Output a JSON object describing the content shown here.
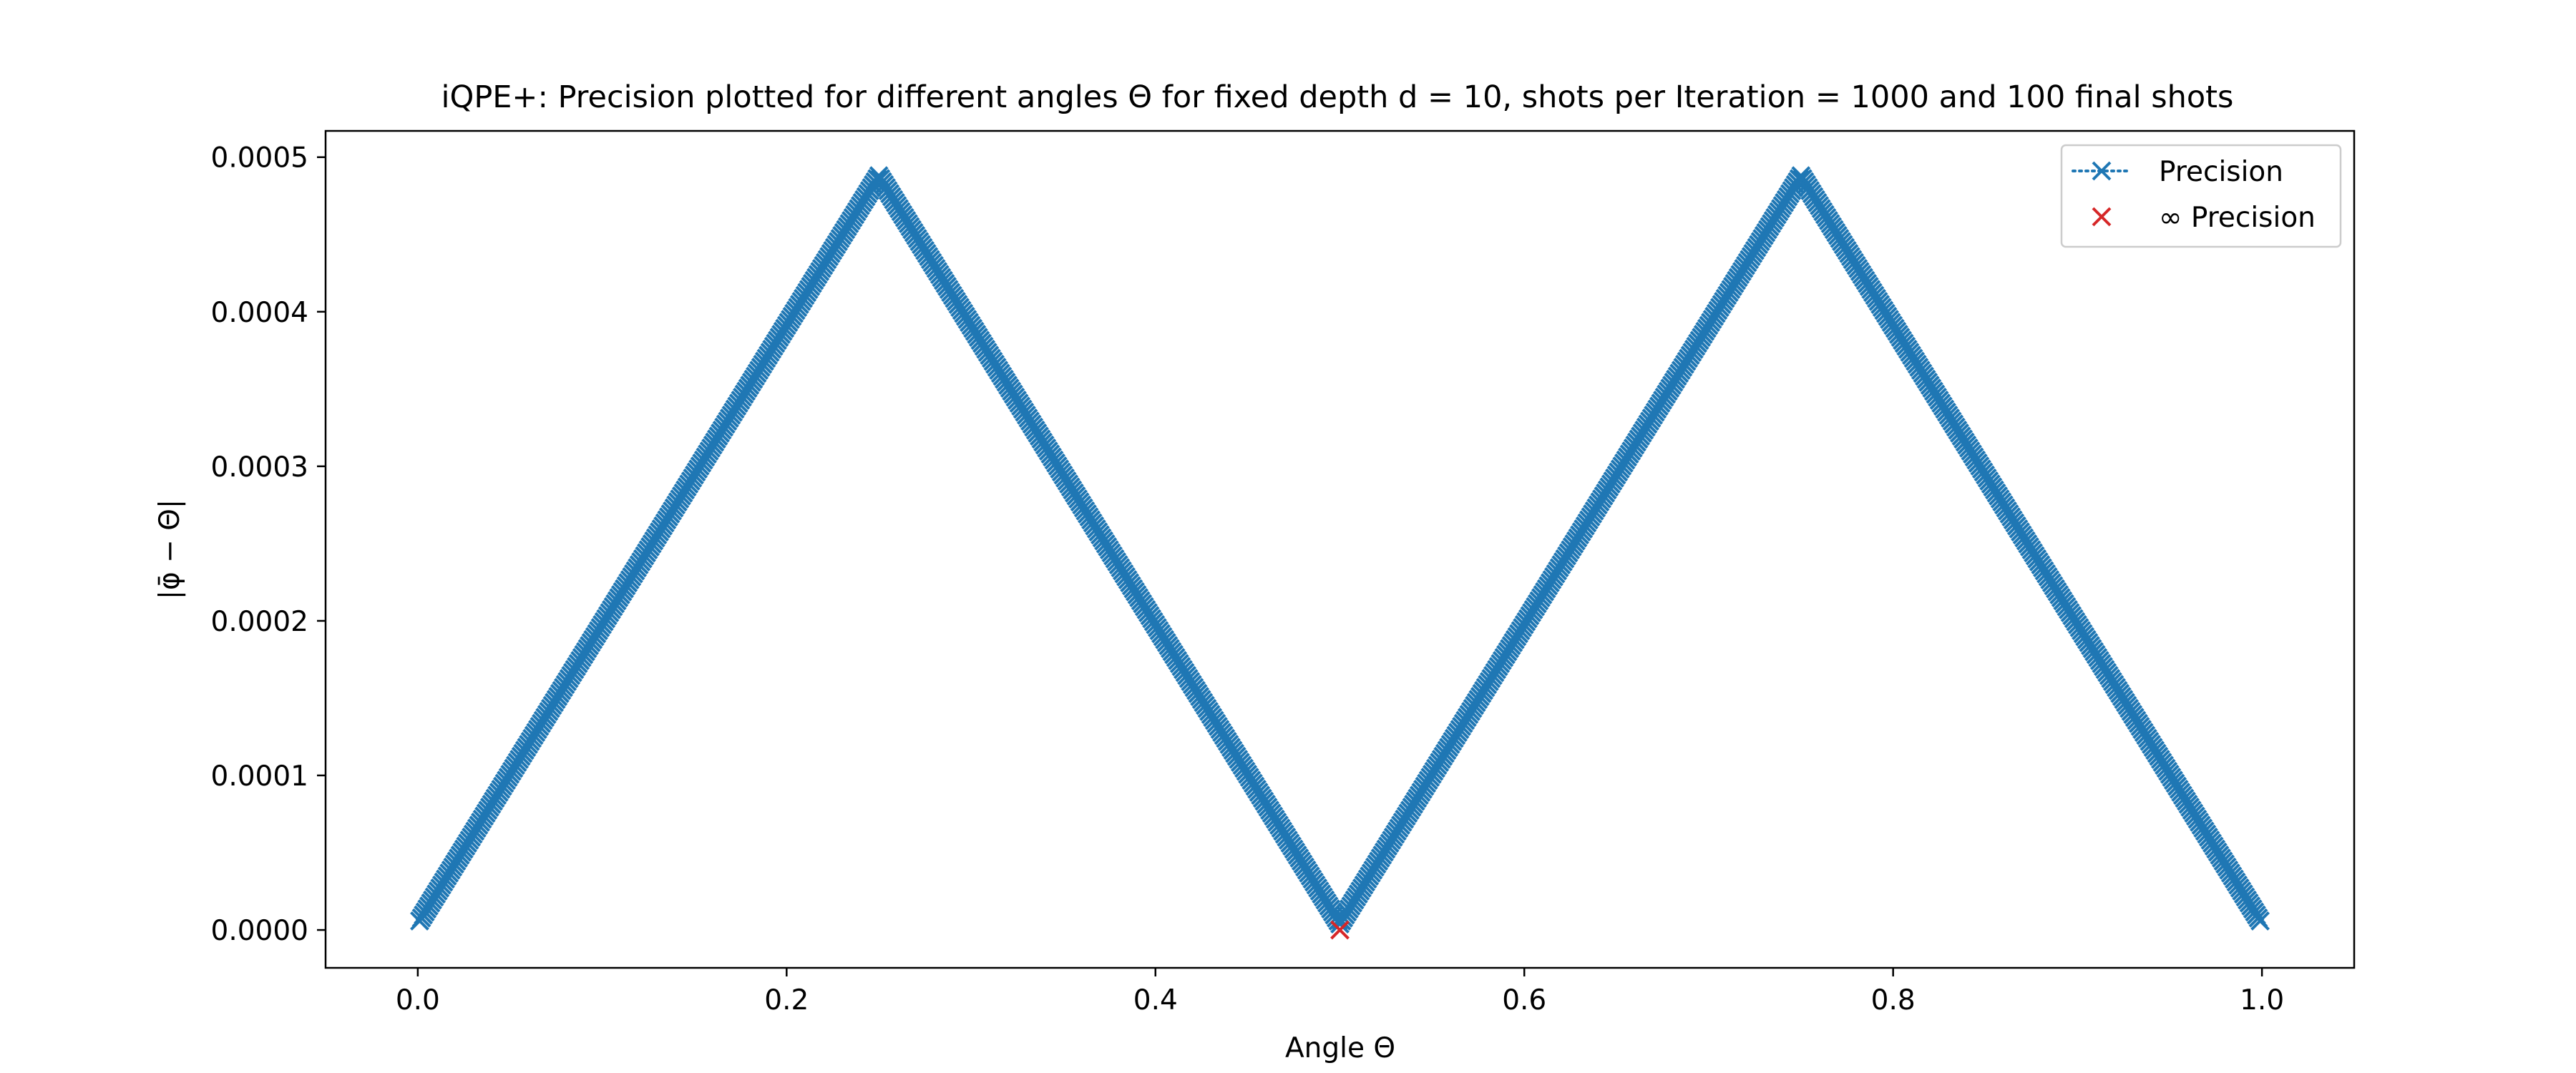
{
  "chart_data": {
    "type": "scatter",
    "title": "iQPE+: Precision plotted for different angles Θ for fixed depth d = 10, shots per Iteration = 1000 and 100 final shots",
    "xlabel": "Angle Θ",
    "ylabel": "|φ̄ − Θ|",
    "xlim": [
      -0.05,
      1.05
    ],
    "ylim": [
      -2.45e-05,
      0.000517
    ],
    "xticks": [
      0.0,
      0.2,
      0.4,
      0.6,
      0.8,
      1.0
    ],
    "xtick_labels": [
      "0.0",
      "0.2",
      "0.4",
      "0.6",
      "0.8",
      "1.0"
    ],
    "yticks": [
      0.0,
      0.0001,
      0.0002,
      0.0003,
      0.0004,
      0.0005
    ],
    "ytick_labels": [
      "0.0000",
      "0.0001",
      "0.0002",
      "0.0003",
      "0.0004",
      "0.0005"
    ],
    "grid": false,
    "legend_position": "top-right",
    "series": [
      {
        "name": "Precision",
        "marker": "x",
        "linestyle": "dotted",
        "color": "#1f77b4",
        "x_range": [
          0.001,
          0.999
        ],
        "num_points": 999,
        "description_values": "triangle wave |φ̄ − Θ| = 0.000488 − |((Θ mod 0.5) − 0.25)| × 0.001953 (period 0.5, peaks at 0.25 and 0.75)",
        "peak_value": 0.000488,
        "period": 0.5,
        "max_error": 0.000488,
        "min_error": 3.9e-06
      },
      {
        "name": "∞ Precision",
        "marker": "x",
        "linestyle": "none",
        "color": "#d62728",
        "x": [
          0.5
        ],
        "y": [
          0.0
        ]
      }
    ]
  }
}
